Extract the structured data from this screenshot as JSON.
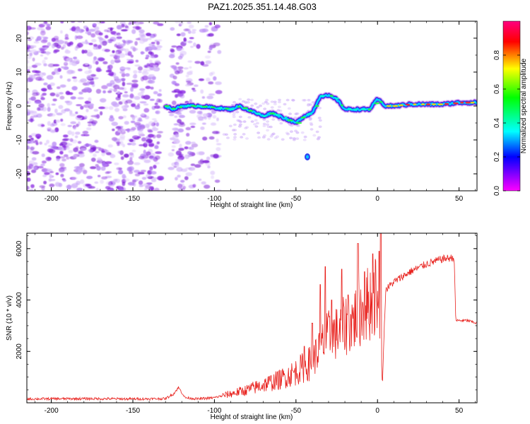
{
  "figure_title": "PAZ1.2025.351.14.48.G03",
  "colors": {
    "snr_line": "#e8201c",
    "axes": "#000000",
    "background": "#ffffff",
    "scatter": "#8a2be2"
  },
  "chart_data": [
    {
      "type": "heatmap",
      "title": "PAZ1.2025.351.14.48.G03",
      "xlabel": "Height of straight line (km)",
      "ylabel": "Frequency (Hz)",
      "xlim": [
        -215,
        61
      ],
      "ylim": [
        -25,
        25
      ],
      "xticks": [
        -200,
        -150,
        -100,
        -50,
        0,
        50
      ],
      "yticks": [
        -20,
        -10,
        0,
        10,
        20
      ],
      "colorbar": {
        "label": "Normalized spectral amplitude",
        "range": [
          0,
          1
        ],
        "ticks": [
          0.0,
          0.2,
          0.4,
          0.6,
          0.8
        ],
        "colormap": [
          "#ff00ff",
          "#0000ff",
          "#00ffff",
          "#00ff00",
          "#ffff00",
          "#ff0000",
          "#ff0080"
        ]
      },
      "ridge": {
        "x": [
          -130,
          -125,
          -120,
          -110,
          -100,
          -90,
          -85,
          -80,
          -75,
          -70,
          -65,
          -60,
          -55,
          -50,
          -45,
          -40,
          -35,
          -30,
          -25,
          -20,
          -15,
          -10,
          -5,
          0,
          5,
          10,
          20,
          30,
          40,
          50,
          60
        ],
        "y": [
          0,
          -1,
          0,
          0,
          -0.5,
          -1,
          0,
          -1,
          -2,
          -3,
          -2,
          -3,
          -4,
          -5,
          -3,
          -2,
          3,
          3,
          2,
          -1,
          -1,
          -1,
          -1,
          2,
          0,
          0,
          0.5,
          0.5,
          0.5,
          1,
          1
        ]
      }
    },
    {
      "type": "line",
      "xlabel": "Height of straight line (km)",
      "ylabel": "SNR (10 * v/v)",
      "xlim": [
        -215,
        61
      ],
      "ylim": [
        0,
        6600
      ],
      "xticks": [
        -200,
        -150,
        -100,
        -50,
        0,
        50
      ],
      "yticks": [
        2000,
        4000,
        6000
      ],
      "series": [
        {
          "name": "SNR",
          "envelope": {
            "x": [
              -215,
              -180,
              -150,
              -130,
              -125,
              -122,
              -118,
              -110,
              -100,
              -90,
              -80,
              -70,
              -60,
              -50,
              -40,
              -35,
              -30,
              -25,
              -20,
              -15,
              -10,
              -5,
              0,
              3,
              5,
              10,
              20,
              30,
              40,
              47,
              48,
              55,
              61
            ],
            "y": [
              150,
              160,
              150,
              160,
              350,
              600,
              200,
              150,
              200,
              350,
              500,
              700,
              900,
              1200,
              1600,
              2200,
              2600,
              2700,
              3000,
              3200,
              3600,
              3900,
              4300,
              800,
              4400,
              4700,
              5100,
              5400,
              5600,
              5650,
              3200,
              3200,
              3100
            ]
          },
          "spikes": {
            "x": [
              -45,
              -40,
              -35,
              -32,
              -28,
              -22,
              -18,
              -12,
              -8,
              -3,
              1,
              2
            ],
            "y": [
              2200,
              3100,
              4600,
              5300,
              4000,
              5200,
              4200,
              6200,
              5100,
              5800,
              5900,
              6600
            ]
          }
        }
      ]
    }
  ]
}
